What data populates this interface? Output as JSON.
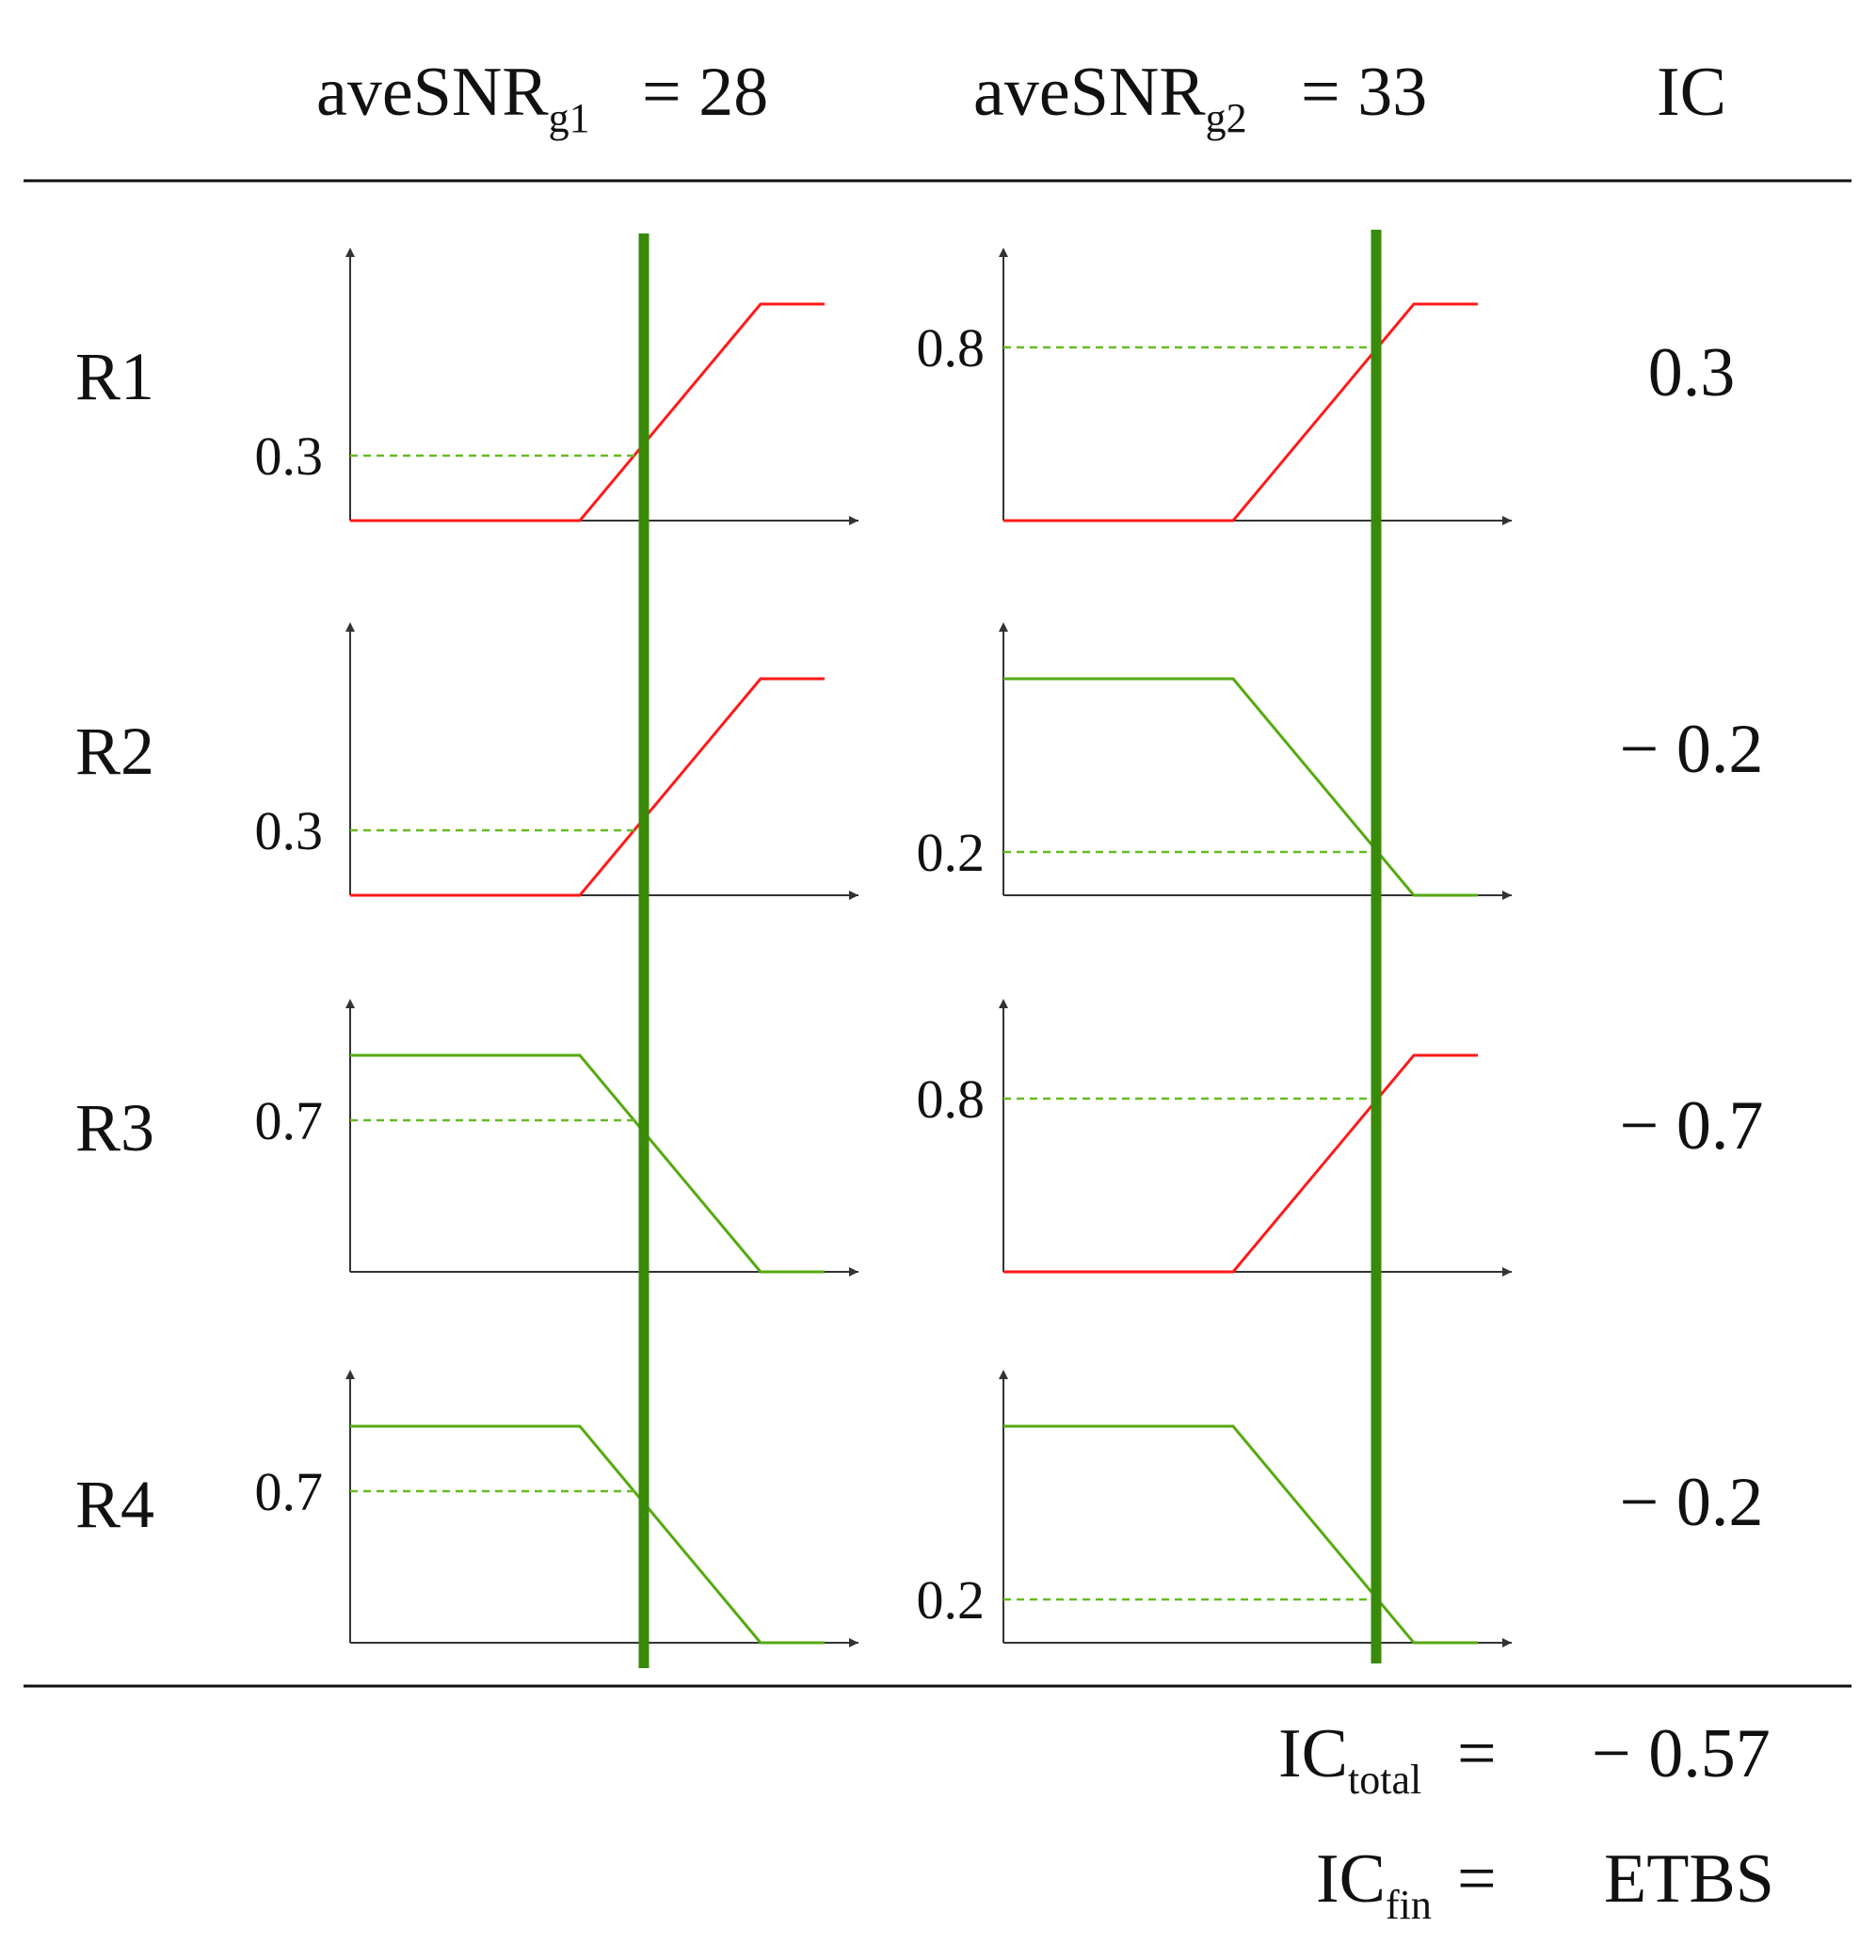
{
  "header": {
    "col1_main": "aveSNR",
    "col1_sub": "g1",
    "col1_eq": "= 28",
    "col2_main": "aveSNR",
    "col2_sub": "g2",
    "col2_eq": "= 33",
    "col3": "IC"
  },
  "colors": {
    "increasing_curve": "#ff1a1a",
    "decreasing_curve": "#55aa10",
    "cut_line": "#3a8a0a",
    "dashed_level": "#66bb22",
    "axis": "#333333",
    "rule": "#111111"
  },
  "rows": [
    {
      "label": "R1",
      "g1": {
        "shape": "increasing",
        "level": 0.3,
        "level_label": "0.3"
      },
      "g2": {
        "shape": "increasing",
        "level": 0.8,
        "level_label": "0.8"
      },
      "ic": "0.3"
    },
    {
      "label": "R2",
      "g1": {
        "shape": "increasing",
        "level": 0.3,
        "level_label": "0.3"
      },
      "g2": {
        "shape": "decreasing",
        "level": 0.2,
        "level_label": "0.2"
      },
      "ic": "− 0.2"
    },
    {
      "label": "R3",
      "g1": {
        "shape": "decreasing",
        "level": 0.7,
        "level_label": "0.7"
      },
      "g2": {
        "shape": "increasing",
        "level": 0.8,
        "level_label": "0.8"
      },
      "ic": "− 0.7"
    },
    {
      "label": "R4",
      "g1": {
        "shape": "decreasing",
        "level": 0.7,
        "level_label": "0.7"
      },
      "g2": {
        "shape": "decreasing",
        "level": 0.2,
        "level_label": "0.2"
      },
      "ic": "− 0.2"
    }
  ],
  "footer": {
    "total_main": "IC",
    "total_sub": "total",
    "total_eq": "=",
    "total_value": "− 0.57",
    "fin_main": "IC",
    "fin_sub": "fin",
    "fin_eq": "=",
    "fin_value": "ETBS"
  }
}
